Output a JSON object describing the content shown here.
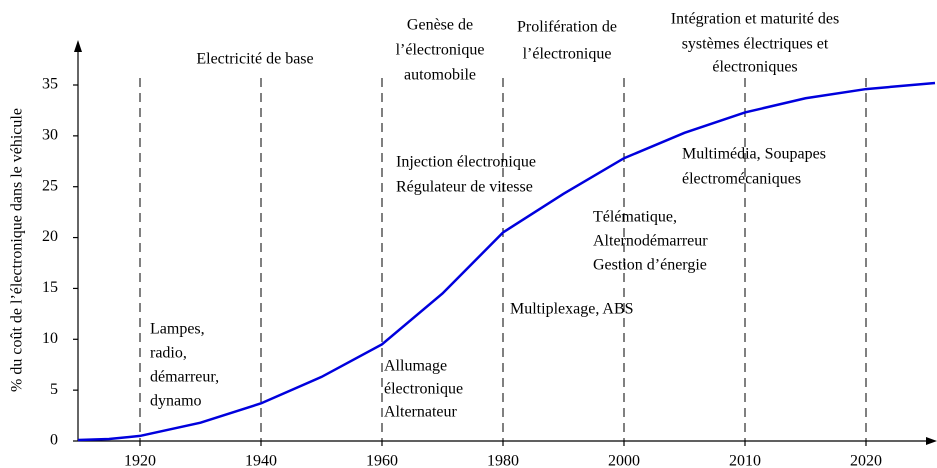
{
  "chart_data": {
    "type": "line",
    "y_label": "% du coût de l’électronique dans le véhicule",
    "x": [
      1910,
      1915,
      1920,
      1930,
      1940,
      1950,
      1960,
      1970,
      1980,
      1990,
      2000,
      2005,
      2010,
      2015,
      2020,
      2025
    ],
    "series": [
      {
        "name": null,
        "color": "#0000dd",
        "values": [
          0.1,
          0.2,
          0.5,
          1.8,
          3.7,
          6.3,
          9.5,
          14.5,
          20.5,
          24.3,
          27.8,
          30.3,
          32.3,
          33.7,
          34.6,
          35.2
        ]
      }
    ],
    "xlim": [
      1910,
      2025
    ],
    "xticks": [
      1920,
      1940,
      1960,
      1980,
      2000,
      2010,
      2020
    ],
    "ylim": [
      0,
      35
    ],
    "yticks": [
      0,
      5,
      10,
      15,
      20,
      25,
      30,
      35
    ],
    "eras": [
      [
        "Electricité de base"
      ],
      [
        "Genèse de",
        "l’électronique",
        "automobile"
      ],
      [
        "Prolifération de",
        "l’électronique"
      ],
      [
        "Intégration et maturité des",
        "systèmes électriques et",
        "électroniques"
      ]
    ],
    "annotations": [
      [
        "Lampes,",
        "radio,",
        "démarreur,",
        "dynamo"
      ],
      [
        "Allumage",
        "électronique",
        "Alternateur"
      ],
      [
        "Injection électronique",
        "Régulateur de vitesse"
      ],
      [
        "Multiplexage, ABS"
      ],
      [
        "Télématique,",
        "Alternodémarreur",
        "Gestion d’énergie"
      ],
      [
        "Multimédia, Soupapes",
        "électromécaniques"
      ]
    ]
  }
}
